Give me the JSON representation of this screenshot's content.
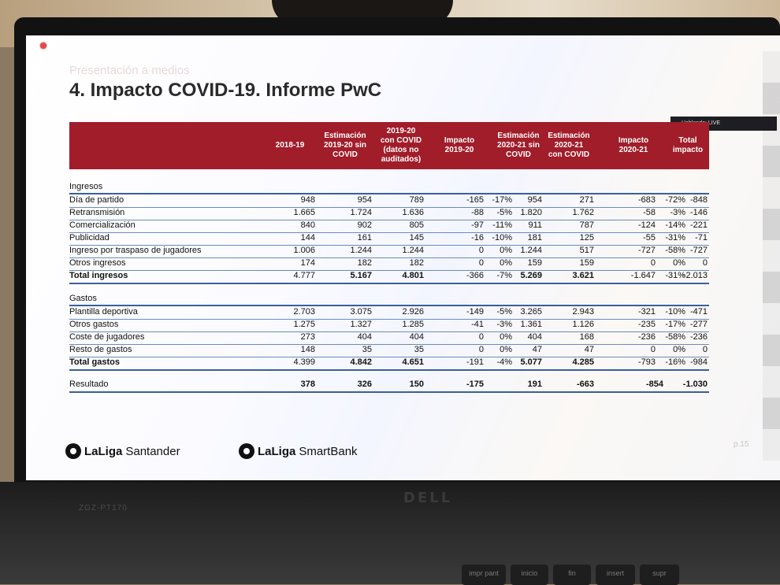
{
  "slide": {
    "breadcrumb": "Presentación a medios",
    "title": "4. Impacto COVID-19. Informe PwC",
    "speaker": "Hablando: LIVE",
    "page": "p.15"
  },
  "table": {
    "columns": [
      "2018-19",
      "Estimación\n2019-20 sin\nCOVID",
      "2019-20\ncon COVID\n(datos no\nauditados)",
      "Impacto\n2019-20",
      "Estimación\n2020-21 sin\nCOVID",
      "Estimación\n2020-21\ncon COVID",
      "Impacto\n2020-21",
      "Total\nimpacto"
    ],
    "income_title": "Ingresos",
    "income_rows": [
      {
        "label": "Día de partido",
        "v": [
          "948",
          "954",
          "789",
          "-165",
          "-17%",
          "954",
          "271",
          "-683",
          "-72%",
          "-848"
        ]
      },
      {
        "label": "Retransmisión",
        "v": [
          "1.665",
          "1.724",
          "1.636",
          "-88",
          "-5%",
          "1.820",
          "1.762",
          "-58",
          "-3%",
          "-146"
        ]
      },
      {
        "label": "Comercialización",
        "v": [
          "840",
          "902",
          "805",
          "-97",
          "-11%",
          "911",
          "787",
          "-124",
          "-14%",
          "-221"
        ]
      },
      {
        "label": "Publicidad",
        "v": [
          "144",
          "161",
          "145",
          "-16",
          "-10%",
          "181",
          "125",
          "-55",
          "-31%",
          "-71"
        ]
      },
      {
        "label": "Ingreso por traspaso de jugadores",
        "v": [
          "1.006",
          "1.244",
          "1.244",
          "0",
          "0%",
          "1.244",
          "517",
          "-727",
          "-58%",
          "-727"
        ]
      },
      {
        "label": "Otros ingresos",
        "v": [
          "174",
          "182",
          "182",
          "0",
          "0%",
          "159",
          "159",
          "0",
          "0%",
          "0"
        ]
      }
    ],
    "income_total": {
      "label": "Total ingresos",
      "v": [
        "4.777",
        "5.167",
        "4.801",
        "-366",
        "-7%",
        "5.269",
        "3.621",
        "-1.647",
        "-31%",
        "-2.013"
      ]
    },
    "expense_title": "Gastos",
    "expense_rows": [
      {
        "label": "Plantilla deportiva",
        "v": [
          "2.703",
          "3.075",
          "2.926",
          "-149",
          "-5%",
          "3.265",
          "2.943",
          "-321",
          "-10%",
          "-471"
        ]
      },
      {
        "label": "Otros gastos",
        "v": [
          "1.275",
          "1.327",
          "1.285",
          "-41",
          "-3%",
          "1.361",
          "1.126",
          "-235",
          "-17%",
          "-277"
        ]
      },
      {
        "label": "Coste de jugadores",
        "v": [
          "273",
          "404",
          "404",
          "0",
          "0%",
          "404",
          "168",
          "-236",
          "-58%",
          "-236"
        ]
      },
      {
        "label": "Resto de gastos",
        "v": [
          "148",
          "35",
          "35",
          "0",
          "0%",
          "47",
          "47",
          "0",
          "0%",
          "0"
        ]
      }
    ],
    "expense_total": {
      "label": "Total gastos",
      "v": [
        "4.399",
        "4.842",
        "4.651",
        "-191",
        "-4%",
        "5.077",
        "4.285",
        "-793",
        "-16%",
        "-984"
      ]
    },
    "result": {
      "label": "Resultado",
      "v": [
        "378",
        "326",
        "150",
        "-175",
        "",
        "191",
        "-663",
        "-854",
        "",
        "-1.030"
      ]
    }
  },
  "logos": {
    "logo1_a": "LaLiga",
    "logo1_b": "Santander",
    "logo2_a": "LaLiga",
    "logo2_b": "SmartBank"
  },
  "device": {
    "brand": "DELL",
    "model": "ZGZ-PT170",
    "keys": [
      "impr pant",
      "inicio",
      "fin",
      "insert",
      "supr"
    ]
  }
}
